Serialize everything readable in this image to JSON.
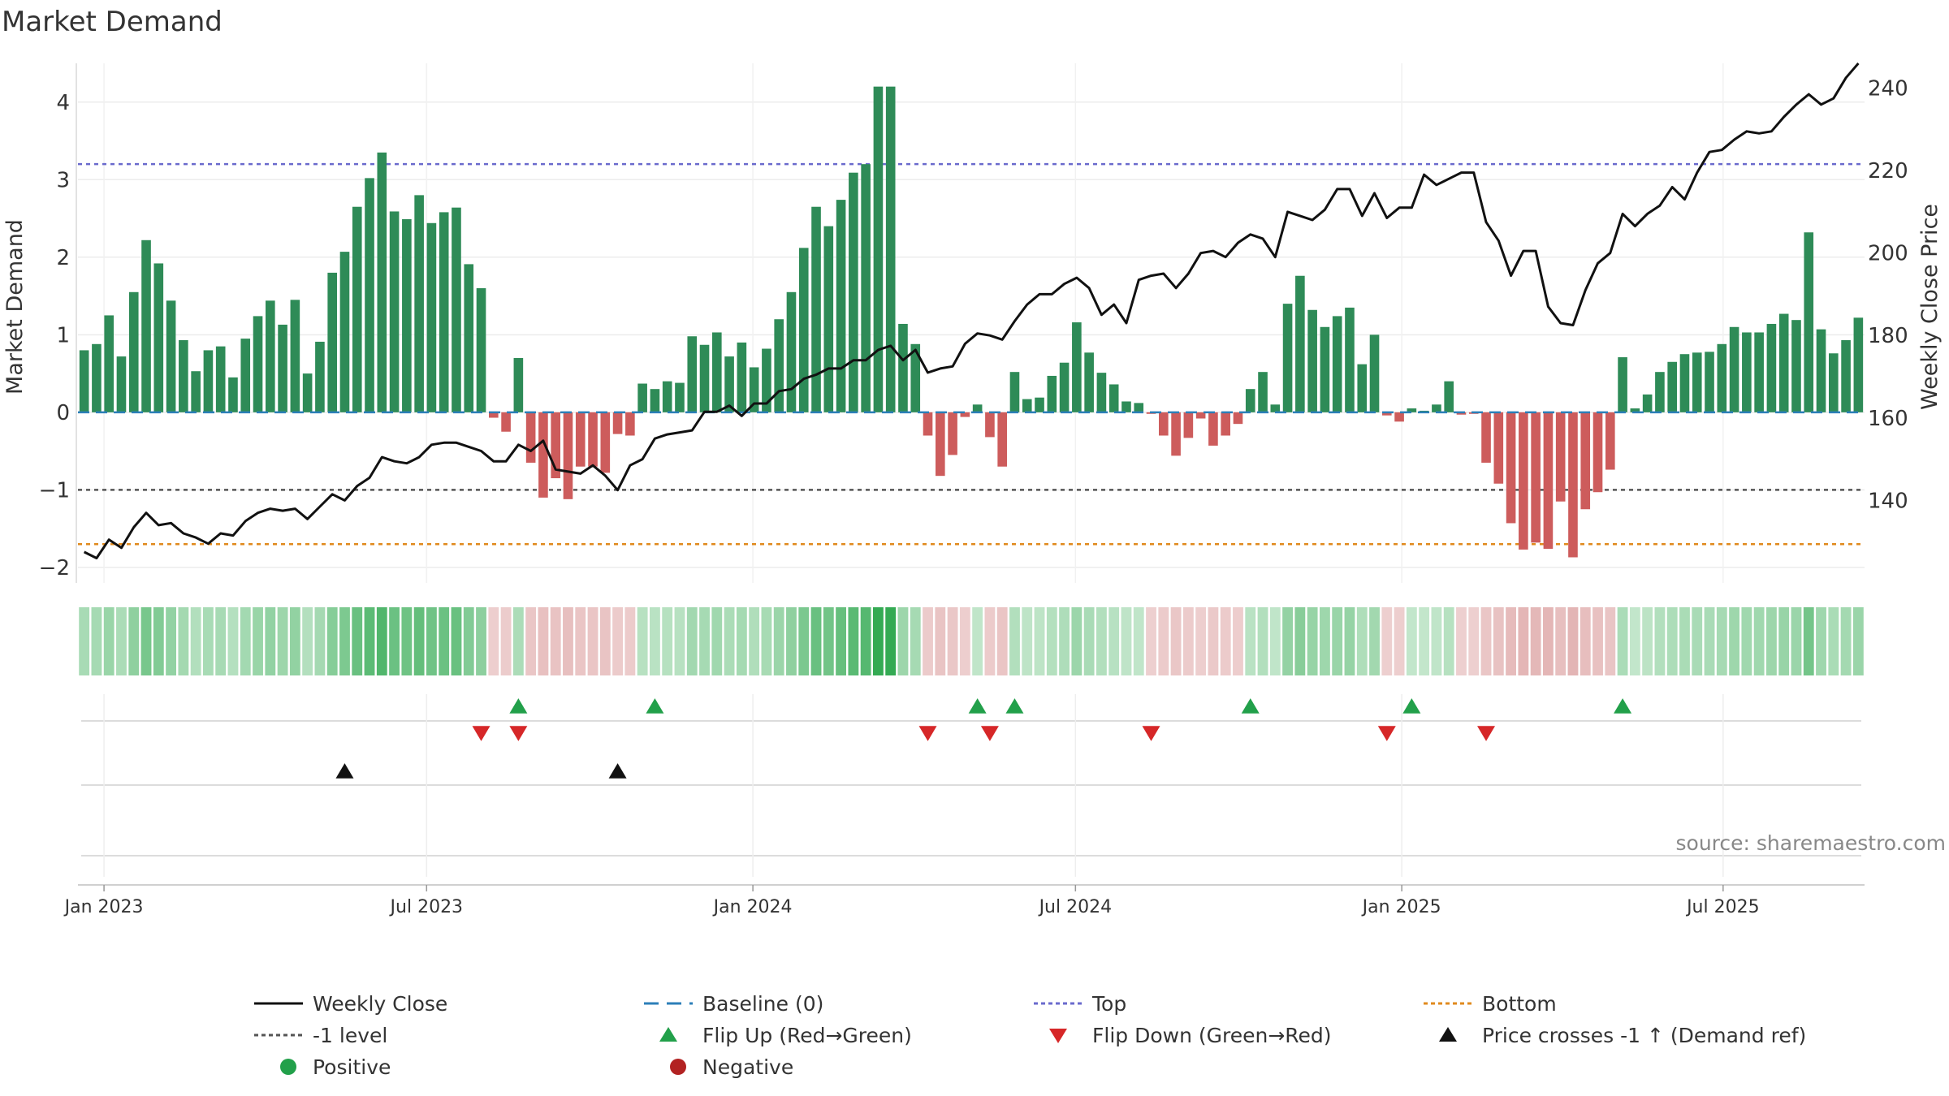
{
  "chart_data": {
    "type": "bar",
    "title": "Market Demand",
    "ylabel": "Market Demand",
    "y2label": "Weekly Close Price",
    "ylim": [
      -2.2,
      4.5
    ],
    "y2lim": [
      120,
      246
    ],
    "yticks": [
      4,
      3,
      2,
      1,
      0,
      -1,
      -2
    ],
    "yticks_labels": [
      "4",
      "3",
      "2",
      "1",
      "0",
      "−1",
      "−2"
    ],
    "y2ticks": [
      240,
      220,
      200,
      180,
      160,
      140
    ],
    "reference_lines": {
      "top": 3.2,
      "minus_one": -1,
      "bottom": -1.7,
      "baseline": 0
    },
    "x_week_start": "2022-12-26",
    "xticks": [
      "Jan 2023",
      "Jul 2023",
      "Jan 2024",
      "Jul 2024",
      "Jan 2025",
      "Jul 2025"
    ],
    "xtick_weeks": [
      1.6,
      27.6,
      53.9,
      79.9,
      106.2,
      132.1
    ],
    "demand": [
      0.8,
      0.88,
      1.25,
      0.72,
      1.55,
      2.22,
      1.92,
      1.44,
      0.93,
      0.53,
      0.8,
      0.85,
      0.45,
      0.95,
      1.24,
      1.44,
      1.13,
      1.45,
      0.5,
      0.91,
      1.8,
      2.07,
      2.65,
      3.02,
      3.35,
      2.59,
      2.49,
      2.8,
      2.44,
      2.58,
      2.64,
      1.91,
      1.6,
      -0.07,
      -0.25,
      0.7,
      -0.65,
      -1.1,
      -0.85,
      -1.12,
      -0.7,
      -0.7,
      -0.78,
      -0.28,
      -0.3,
      0.37,
      0.3,
      0.4,
      0.38,
      0.98,
      0.87,
      1.03,
      0.72,
      0.9,
      0.58,
      0.82,
      1.2,
      1.55,
      2.12,
      2.65,
      2.4,
      2.74,
      3.09,
      3.2,
      4.2,
      4.2,
      1.14,
      0.88,
      -0.3,
      -0.82,
      -0.55,
      -0.06,
      0.1,
      -0.32,
      -0.7,
      0.52,
      0.17,
      0.19,
      0.47,
      0.64,
      1.16,
      0.77,
      0.51,
      0.36,
      0.14,
      0.12,
      -0.02,
      -0.3,
      -0.56,
      -0.33,
      -0.08,
      -0.43,
      -0.3,
      -0.15,
      0.3,
      0.52,
      0.1,
      1.4,
      1.76,
      1.32,
      1.1,
      1.24,
      1.35,
      0.62,
      1.0,
      -0.04,
      -0.12,
      0.05,
      0.02,
      0.1,
      0.4,
      -0.03,
      -0.02,
      -0.65,
      -0.92,
      -1.43,
      -1.77,
      -1.68,
      -1.76,
      -1.15,
      -1.87,
      -1.25,
      -1.03,
      -0.74,
      0.71,
      0.05,
      0.23,
      0.52,
      0.65,
      0.75,
      0.77,
      0.78,
      0.88,
      1.1,
      1.03,
      1.03,
      1.14,
      1.27,
      1.19,
      2.32,
      1.07,
      0.76,
      0.93,
      1.22
    ],
    "weekly_close": [
      127.5,
      126.0,
      130.5,
      128.5,
      133.5,
      137.0,
      134.0,
      134.5,
      132.0,
      131.0,
      129.5,
      132.0,
      131.5,
      135.0,
      137.0,
      138.0,
      137.5,
      138.0,
      135.5,
      138.5,
      141.5,
      140.0,
      143.5,
      145.5,
      150.5,
      149.5,
      149.0,
      150.5,
      153.5,
      154.0,
      154.0,
      153.0,
      152.0,
      149.5,
      149.5,
      153.5,
      152.0,
      154.5,
      147.5,
      147.0,
      146.5,
      148.5,
      146.0,
      142.5,
      148.5,
      150.0,
      155.0,
      156.0,
      156.5,
      157.0,
      161.5,
      161.5,
      163.0,
      160.5,
      163.5,
      163.5,
      166.5,
      167.0,
      169.5,
      170.5,
      172.0,
      172.0,
      174.0,
      174.0,
      176.5,
      177.5,
      174.0,
      176.5,
      171.0,
      172.0,
      172.5,
      178.0,
      180.5,
      180.0,
      179.0,
      183.5,
      187.5,
      190.0,
      190.0,
      192.5,
      194.0,
      191.5,
      185.0,
      187.5,
      183.0,
      193.5,
      194.5,
      195.0,
      191.5,
      195.0,
      200.0,
      200.5,
      199.0,
      202.5,
      204.5,
      203.5,
      199.0,
      210.0,
      209.0,
      208.0,
      210.5,
      215.5,
      215.5,
      209.0,
      214.5,
      208.5,
      211.0,
      211.0,
      219.0,
      216.5,
      218.0,
      219.5,
      219.5,
      207.5,
      203.0,
      194.5,
      200.5,
      200.5,
      187.0,
      183.0,
      182.5,
      191.0,
      197.5,
      200.0,
      209.5,
      206.5,
      209.5,
      211.5,
      216.0,
      213.0,
      219.5,
      224.5,
      225.0,
      227.5,
      229.5,
      229.0,
      229.5,
      233.0,
      236.0,
      238.5,
      236.0,
      237.5,
      242.5,
      246.0
    ],
    "heat_strip": "demand-colored weekly cells (green positive, red negative, intensity by magnitude)",
    "flip_up_weeks": [
      35,
      46,
      72,
      75,
      94,
      107,
      124
    ],
    "flip_down_weeks": [
      32,
      35,
      68,
      73,
      86,
      105,
      113
    ],
    "price_cross_weeks": [
      21,
      43
    ],
    "source": "source: sharemaestro.com",
    "legend": [
      {
        "label": "Weekly Close",
        "kind": "line-solid",
        "color": "#111111"
      },
      {
        "label": "Baseline (0)",
        "kind": "line-dashed",
        "color": "#2c7fb8"
      },
      {
        "label": "Top",
        "kind": "line-dotted",
        "color": "#6a6acd"
      },
      {
        "label": "Bottom",
        "kind": "line-dotted",
        "color": "#e08a1e"
      },
      {
        "label": "-1 level",
        "kind": "line-dotted",
        "color": "#555555"
      },
      {
        "label": "Flip Up (Red→Green)",
        "kind": "tri-up",
        "color": "#22a04a"
      },
      {
        "label": "Flip Down (Green→Red)",
        "kind": "tri-down",
        "color": "#d62728"
      },
      {
        "label": "Price crosses -1 ↑ (Demand ref)",
        "kind": "tri-up",
        "color": "#111111"
      },
      {
        "label": "Positive",
        "kind": "dot",
        "color": "#22a04a"
      },
      {
        "label": "Negative",
        "kind": "dot",
        "color": "#b22222"
      }
    ],
    "colors": {
      "positive_bar": "#2e8b57",
      "negative_bar": "#cd5c5c",
      "price_line": "#111111",
      "top_line": "#6a6acd",
      "bottom_line": "#e08a1e",
      "minus_one_line": "#555555",
      "baseline": "#2c7fb8",
      "grid": "#ececec"
    }
  }
}
